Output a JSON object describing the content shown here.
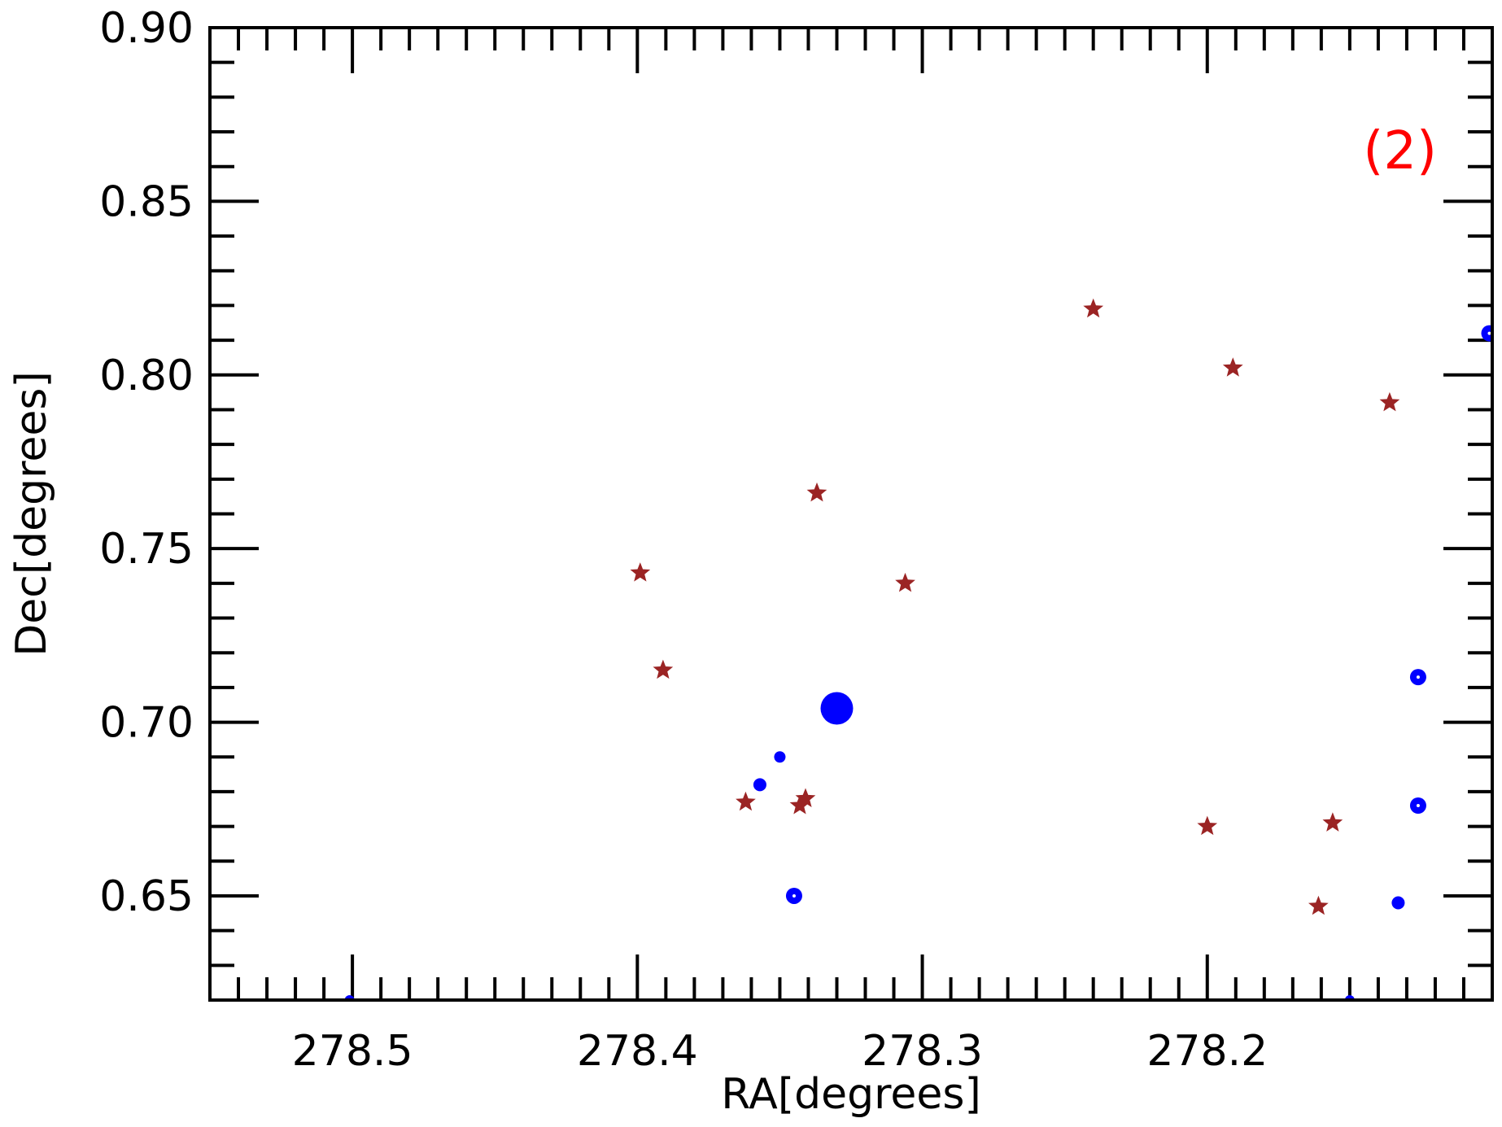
{
  "chart_data": {
    "type": "scatter",
    "xlabel": "RA[degrees]",
    "ylabel": "Dec[degrees]",
    "xlim": [
      278.55,
      278.1
    ],
    "ylim": [
      0.62,
      0.9
    ],
    "x_inverted": true,
    "xticks": [
      278.5,
      278.4,
      278.3,
      278.2
    ],
    "xtick_labels": [
      "278.5",
      "278.4",
      "278.3",
      "278.2"
    ],
    "yticks": [
      0.65,
      0.7,
      0.75,
      0.8,
      0.85,
      0.9
    ],
    "ytick_labels": [
      "0.65",
      "0.70",
      "0.75",
      "0.80",
      "0.85",
      "0.90"
    ],
    "grid": false,
    "annotation": {
      "text": "(2)",
      "color": "#ff0000"
    },
    "series": [
      {
        "marker": "star",
        "color": "#9b2424",
        "points": [
          {
            "x": 278.391,
            "y": 0.715
          },
          {
            "x": 278.399,
            "y": 0.743
          },
          {
            "x": 278.362,
            "y": 0.677
          },
          {
            "x": 278.341,
            "y": 0.678
          },
          {
            "x": 278.343,
            "y": 0.676
          },
          {
            "x": 278.337,
            "y": 0.766
          },
          {
            "x": 278.306,
            "y": 0.74
          },
          {
            "x": 278.24,
            "y": 0.819
          },
          {
            "x": 278.2,
            "y": 0.67
          },
          {
            "x": 278.191,
            "y": 0.802
          },
          {
            "x": 278.161,
            "y": 0.647
          },
          {
            "x": 278.156,
            "y": 0.671
          },
          {
            "x": 278.136,
            "y": 0.792
          }
        ]
      },
      {
        "marker": "circle",
        "color": "#0000ff",
        "points": [
          {
            "x": 278.501,
            "y": 0.62,
            "size": 6
          },
          {
            "x": 278.33,
            "y": 0.704,
            "size": 20
          },
          {
            "x": 278.35,
            "y": 0.69,
            "size": 7
          },
          {
            "x": 278.357,
            "y": 0.682,
            "size": 8
          },
          {
            "x": 278.345,
            "y": 0.65,
            "size": 10,
            "hollow": true
          },
          {
            "x": 278.15,
            "y": 0.62,
            "size": 6
          },
          {
            "x": 278.101,
            "y": 0.812,
            "size": 10,
            "hollow": true
          },
          {
            "x": 278.126,
            "y": 0.713,
            "size": 10,
            "hollow": true
          },
          {
            "x": 278.126,
            "y": 0.676,
            "size": 10,
            "hollow": true
          },
          {
            "x": 278.133,
            "y": 0.648,
            "size": 8
          }
        ]
      }
    ]
  }
}
